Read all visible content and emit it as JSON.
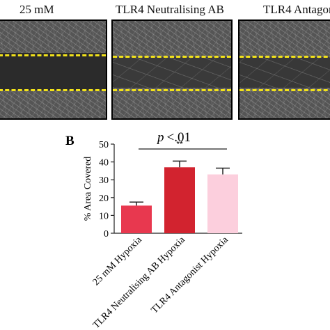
{
  "panel_a": {
    "labels": [
      "25 mM",
      "TLR4 Neutralising AB",
      "TLR4 Antagoni"
    ]
  },
  "panel_b": {
    "label": "B",
    "significance": {
      "p_text": "p",
      "p_value": "<.01",
      "stars": "**"
    }
  },
  "colors": {
    "bar_1": "#e8384f",
    "bar_2": "#d2232f",
    "bar_3": "#fccfdd",
    "scratch_line": "#f2e21a"
  },
  "chart_data": {
    "type": "bar",
    "categories": [
      "25 mM Hypoxia",
      "TLR4 Neutralising AB Hypoxia",
      "TLR4 Antagonist Hypoxia"
    ],
    "values": [
      15.5,
      37,
      33
    ],
    "errors": [
      2,
      3.5,
      3.5
    ],
    "ylabel": "% Area Covered",
    "xlabel": "",
    "ylim": [
      0,
      50
    ],
    "yticks": [
      0,
      10,
      20,
      30,
      40,
      50
    ],
    "grid": false,
    "comparison": {
      "from": 0,
      "to": 2,
      "label": "**"
    }
  }
}
